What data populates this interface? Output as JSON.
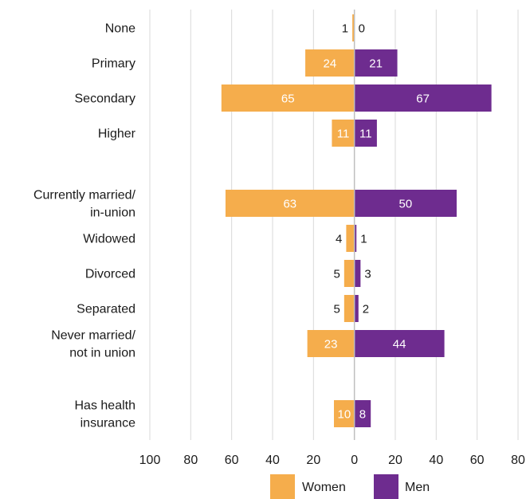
{
  "chart_data": {
    "type": "bar",
    "orientation": "horizontal-diverging",
    "categories": [
      [
        "None"
      ],
      [
        "Primary"
      ],
      [
        "Secondary"
      ],
      [
        "Higher"
      ],
      [
        "Currently married/",
        "in-union"
      ],
      [
        "Widowed"
      ],
      [
        "Divorced"
      ],
      [
        "Separated"
      ],
      [
        "Never married/",
        "not in union"
      ],
      [
        "Has health",
        "insurance"
      ]
    ],
    "category_groups": [
      [
        0,
        1,
        2,
        3
      ],
      [
        4,
        5,
        6,
        7,
        8
      ],
      [
        9
      ]
    ],
    "series": [
      {
        "name": "Women",
        "side": "left",
        "color": "#F5AD4C",
        "values": [
          1,
          24,
          65,
          11,
          63,
          4,
          5,
          5,
          23,
          10
        ]
      },
      {
        "name": "Men",
        "side": "right",
        "color": "#6E2C8F",
        "values": [
          0,
          21,
          67,
          11,
          50,
          1,
          3,
          2,
          44,
          8
        ]
      }
    ],
    "xlim": [
      -100,
      80
    ],
    "x_ticks": [
      {
        "value": -100,
        "label": "100"
      },
      {
        "value": -80,
        "label": "80"
      },
      {
        "value": -60,
        "label": "60"
      },
      {
        "value": -40,
        "label": "40"
      },
      {
        "value": -20,
        "label": "20"
      },
      {
        "value": 0,
        "label": "0"
      },
      {
        "value": 20,
        "label": "20"
      },
      {
        "value": 40,
        "label": "40"
      },
      {
        "value": 60,
        "label": "60"
      },
      {
        "value": 80,
        "label": "80"
      }
    ],
    "grid": true,
    "legend_position": "bottom",
    "colors": {
      "grid": "#D9D9D9",
      "axis": "#BFBFBF",
      "label_inside": "#ffffff",
      "label_outside": "#1a1a1a"
    }
  }
}
